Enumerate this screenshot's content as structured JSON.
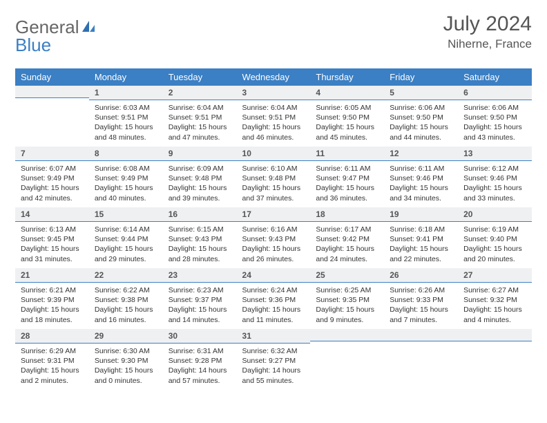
{
  "logo": {
    "text1": "General",
    "text2": "Blue"
  },
  "header": {
    "month": "July 2024",
    "location": "Niherne, France"
  },
  "colors": {
    "header_bg": "#3b7fc4",
    "header_text": "#ffffff",
    "daynum_bg": "#eef0f2",
    "daynum_border": "#3b7fc4",
    "body_text": "#333333",
    "title_text": "#555555"
  },
  "weekdays": [
    "Sunday",
    "Monday",
    "Tuesday",
    "Wednesday",
    "Thursday",
    "Friday",
    "Saturday"
  ],
  "weeks": [
    [
      {
        "n": "",
        "sunrise": "",
        "sunset": "",
        "daylight": ""
      },
      {
        "n": "1",
        "sunrise": "Sunrise: 6:03 AM",
        "sunset": "Sunset: 9:51 PM",
        "daylight": "Daylight: 15 hours and 48 minutes."
      },
      {
        "n": "2",
        "sunrise": "Sunrise: 6:04 AM",
        "sunset": "Sunset: 9:51 PM",
        "daylight": "Daylight: 15 hours and 47 minutes."
      },
      {
        "n": "3",
        "sunrise": "Sunrise: 6:04 AM",
        "sunset": "Sunset: 9:51 PM",
        "daylight": "Daylight: 15 hours and 46 minutes."
      },
      {
        "n": "4",
        "sunrise": "Sunrise: 6:05 AM",
        "sunset": "Sunset: 9:50 PM",
        "daylight": "Daylight: 15 hours and 45 minutes."
      },
      {
        "n": "5",
        "sunrise": "Sunrise: 6:06 AM",
        "sunset": "Sunset: 9:50 PM",
        "daylight": "Daylight: 15 hours and 44 minutes."
      },
      {
        "n": "6",
        "sunrise": "Sunrise: 6:06 AM",
        "sunset": "Sunset: 9:50 PM",
        "daylight": "Daylight: 15 hours and 43 minutes."
      }
    ],
    [
      {
        "n": "7",
        "sunrise": "Sunrise: 6:07 AM",
        "sunset": "Sunset: 9:49 PM",
        "daylight": "Daylight: 15 hours and 42 minutes."
      },
      {
        "n": "8",
        "sunrise": "Sunrise: 6:08 AM",
        "sunset": "Sunset: 9:49 PM",
        "daylight": "Daylight: 15 hours and 40 minutes."
      },
      {
        "n": "9",
        "sunrise": "Sunrise: 6:09 AM",
        "sunset": "Sunset: 9:48 PM",
        "daylight": "Daylight: 15 hours and 39 minutes."
      },
      {
        "n": "10",
        "sunrise": "Sunrise: 6:10 AM",
        "sunset": "Sunset: 9:48 PM",
        "daylight": "Daylight: 15 hours and 37 minutes."
      },
      {
        "n": "11",
        "sunrise": "Sunrise: 6:11 AM",
        "sunset": "Sunset: 9:47 PM",
        "daylight": "Daylight: 15 hours and 36 minutes."
      },
      {
        "n": "12",
        "sunrise": "Sunrise: 6:11 AM",
        "sunset": "Sunset: 9:46 PM",
        "daylight": "Daylight: 15 hours and 34 minutes."
      },
      {
        "n": "13",
        "sunrise": "Sunrise: 6:12 AM",
        "sunset": "Sunset: 9:46 PM",
        "daylight": "Daylight: 15 hours and 33 minutes."
      }
    ],
    [
      {
        "n": "14",
        "sunrise": "Sunrise: 6:13 AM",
        "sunset": "Sunset: 9:45 PM",
        "daylight": "Daylight: 15 hours and 31 minutes."
      },
      {
        "n": "15",
        "sunrise": "Sunrise: 6:14 AM",
        "sunset": "Sunset: 9:44 PM",
        "daylight": "Daylight: 15 hours and 29 minutes."
      },
      {
        "n": "16",
        "sunrise": "Sunrise: 6:15 AM",
        "sunset": "Sunset: 9:43 PM",
        "daylight": "Daylight: 15 hours and 28 minutes."
      },
      {
        "n": "17",
        "sunrise": "Sunrise: 6:16 AM",
        "sunset": "Sunset: 9:43 PM",
        "daylight": "Daylight: 15 hours and 26 minutes."
      },
      {
        "n": "18",
        "sunrise": "Sunrise: 6:17 AM",
        "sunset": "Sunset: 9:42 PM",
        "daylight": "Daylight: 15 hours and 24 minutes."
      },
      {
        "n": "19",
        "sunrise": "Sunrise: 6:18 AM",
        "sunset": "Sunset: 9:41 PM",
        "daylight": "Daylight: 15 hours and 22 minutes."
      },
      {
        "n": "20",
        "sunrise": "Sunrise: 6:19 AM",
        "sunset": "Sunset: 9:40 PM",
        "daylight": "Daylight: 15 hours and 20 minutes."
      }
    ],
    [
      {
        "n": "21",
        "sunrise": "Sunrise: 6:21 AM",
        "sunset": "Sunset: 9:39 PM",
        "daylight": "Daylight: 15 hours and 18 minutes."
      },
      {
        "n": "22",
        "sunrise": "Sunrise: 6:22 AM",
        "sunset": "Sunset: 9:38 PM",
        "daylight": "Daylight: 15 hours and 16 minutes."
      },
      {
        "n": "23",
        "sunrise": "Sunrise: 6:23 AM",
        "sunset": "Sunset: 9:37 PM",
        "daylight": "Daylight: 15 hours and 14 minutes."
      },
      {
        "n": "24",
        "sunrise": "Sunrise: 6:24 AM",
        "sunset": "Sunset: 9:36 PM",
        "daylight": "Daylight: 15 hours and 11 minutes."
      },
      {
        "n": "25",
        "sunrise": "Sunrise: 6:25 AM",
        "sunset": "Sunset: 9:35 PM",
        "daylight": "Daylight: 15 hours and 9 minutes."
      },
      {
        "n": "26",
        "sunrise": "Sunrise: 6:26 AM",
        "sunset": "Sunset: 9:33 PM",
        "daylight": "Daylight: 15 hours and 7 minutes."
      },
      {
        "n": "27",
        "sunrise": "Sunrise: 6:27 AM",
        "sunset": "Sunset: 9:32 PM",
        "daylight": "Daylight: 15 hours and 4 minutes."
      }
    ],
    [
      {
        "n": "28",
        "sunrise": "Sunrise: 6:29 AM",
        "sunset": "Sunset: 9:31 PM",
        "daylight": "Daylight: 15 hours and 2 minutes."
      },
      {
        "n": "29",
        "sunrise": "Sunrise: 6:30 AM",
        "sunset": "Sunset: 9:30 PM",
        "daylight": "Daylight: 15 hours and 0 minutes."
      },
      {
        "n": "30",
        "sunrise": "Sunrise: 6:31 AM",
        "sunset": "Sunset: 9:28 PM",
        "daylight": "Daylight: 14 hours and 57 minutes."
      },
      {
        "n": "31",
        "sunrise": "Sunrise: 6:32 AM",
        "sunset": "Sunset: 9:27 PM",
        "daylight": "Daylight: 14 hours and 55 minutes."
      },
      {
        "n": "",
        "sunrise": "",
        "sunset": "",
        "daylight": ""
      },
      {
        "n": "",
        "sunrise": "",
        "sunset": "",
        "daylight": ""
      },
      {
        "n": "",
        "sunrise": "",
        "sunset": "",
        "daylight": ""
      }
    ]
  ]
}
